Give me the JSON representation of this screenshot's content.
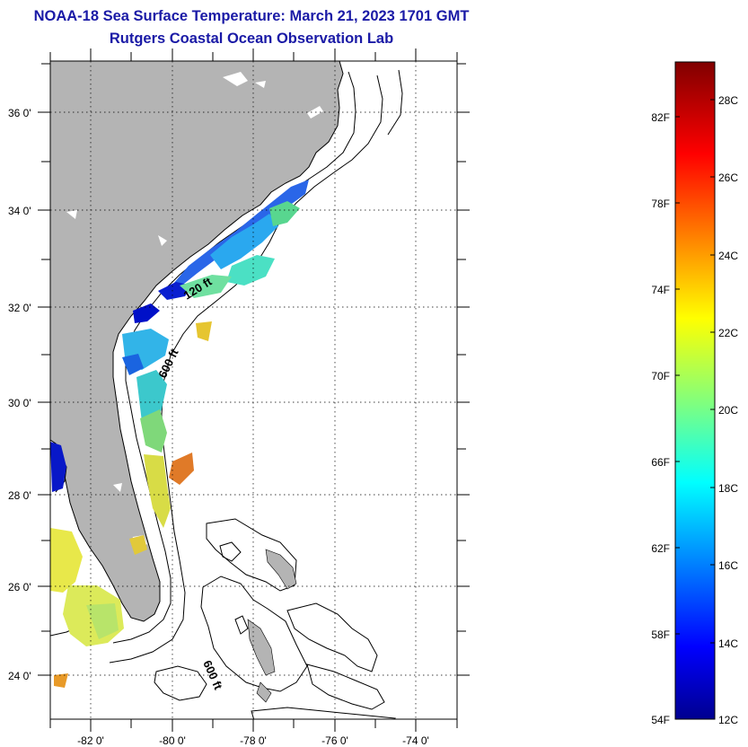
{
  "title": "NOAA-18 Sea Surface Temperature:  March 21, 2023 1701 GMT",
  "subtitle": "Rutgers Coastal Ocean Observation Lab",
  "map": {
    "latitude_labels": [
      "36 0'",
      "34 0'",
      "32 0'",
      "30 0'",
      "28 0'",
      "26 0'",
      "24 0'"
    ],
    "longitude_labels": [
      "-82 0'",
      "-80 0'",
      "-78 0'",
      "-76 0'",
      "-74 0'"
    ],
    "contour_labels": [
      "120 ft",
      "600 ft",
      "600 ft"
    ],
    "land_color": "#b4b4b4",
    "grid": "dotted"
  },
  "colorbar": {
    "fahrenheit_labels": [
      "82F",
      "78F",
      "74F",
      "70F",
      "66F",
      "62F",
      "58F",
      "54F"
    ],
    "celsius_labels": [
      "28C",
      "26C",
      "24C",
      "22C",
      "20C",
      "18C",
      "16C",
      "14C",
      "12C"
    ],
    "colormap": "jet"
  }
}
